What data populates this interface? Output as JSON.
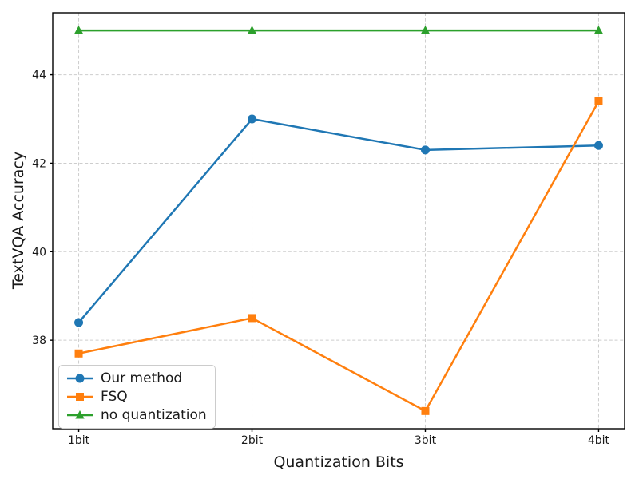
{
  "chart_data": {
    "type": "line",
    "title": "",
    "xlabel": "Quantization Bits",
    "ylabel": "TextVQA Accuracy",
    "categories": [
      "1bit",
      "2bit",
      "3bit",
      "4bit"
    ],
    "yticks": [
      38,
      40,
      42,
      44
    ],
    "ylim": [
      36.0,
      45.4
    ],
    "grid": true,
    "grid_style": "dashed",
    "legend_position": "lower left",
    "series": [
      {
        "name": "Our method",
        "values": [
          38.4,
          43.0,
          42.3,
          42.4
        ],
        "color": "#1f77b4",
        "marker": "circle"
      },
      {
        "name": "FSQ",
        "values": [
          37.7,
          38.5,
          36.4,
          43.4
        ],
        "color": "#ff7f0e",
        "marker": "square"
      },
      {
        "name": "no quantization",
        "values": [
          45.0,
          45.0,
          45.0,
          45.0
        ],
        "color": "#2ca02c",
        "marker": "triangle"
      }
    ]
  },
  "colors": {
    "background": "#ffffff",
    "grid": "#cdcdcd",
    "spine": "#000000",
    "text": "#1a1a1a",
    "legend_border": "#cccccc"
  }
}
